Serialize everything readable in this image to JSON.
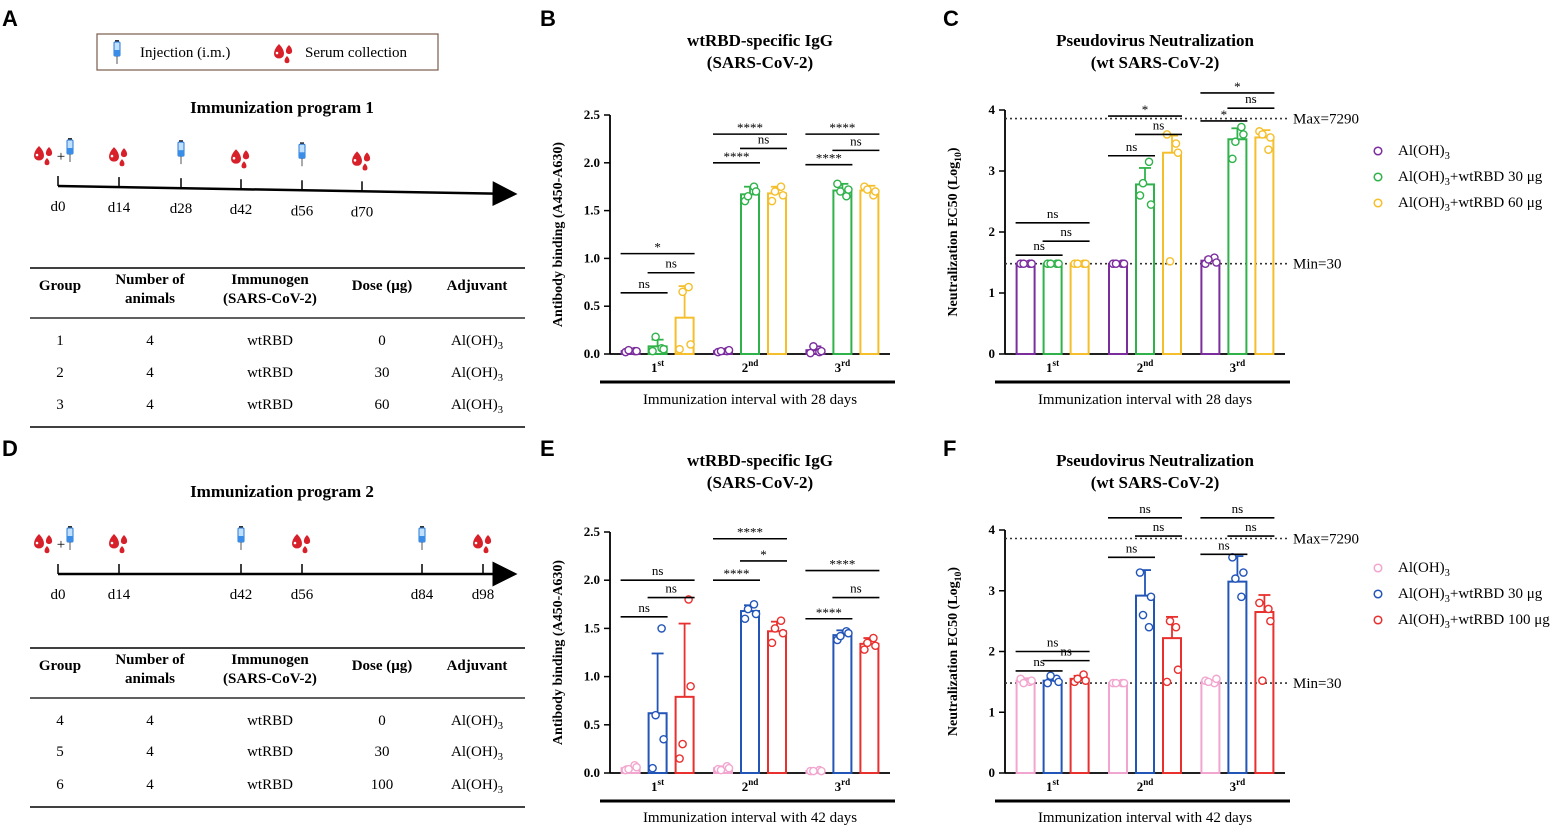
{
  "panel_labels": [
    "A",
    "B",
    "C",
    "D",
    "E",
    "F"
  ],
  "legend_box": {
    "injection": "Injection (i.m.)",
    "serum": "Serum collection"
  },
  "programs": [
    {
      "title": "Immunization program 1",
      "days": [
        "d0",
        "d14",
        "d28",
        "d42",
        "d56",
        "d70"
      ],
      "injection_days": [
        "d0",
        "d28",
        "d56"
      ],
      "serum_days": [
        "d0",
        "d14",
        "d42",
        "d70"
      ]
    },
    {
      "title": "Immunization program 2",
      "days": [
        "d0",
        "d14",
        "d42",
        "d56",
        "d84",
        "d98"
      ],
      "injection_days": [
        "d0",
        "d42",
        "d84"
      ],
      "serum_days": [
        "d0",
        "d14",
        "d56",
        "d98"
      ]
    }
  ],
  "tables": [
    {
      "headers": [
        "Group",
        "Number of|animals",
        "Immunogen|(SARS-CoV-2)",
        "Dose (μg)",
        "Adjuvant"
      ],
      "rows": [
        [
          "1",
          "4",
          "wtRBD",
          "0",
          "Al(OH)₃"
        ],
        [
          "2",
          "4",
          "wtRBD",
          "30",
          "Al(OH)₃"
        ],
        [
          "3",
          "4",
          "wtRBD",
          "60",
          "Al(OH)₃"
        ]
      ]
    },
    {
      "headers": [
        "Group",
        "Number of|animals",
        "Immunogen|(SARS-CoV-2)",
        "Dose (μg)",
        "Adjuvant"
      ],
      "rows": [
        [
          "4",
          "4",
          "wtRBD",
          "0",
          "Al(OH)₃"
        ],
        [
          "5",
          "4",
          "wtRBD",
          "30",
          "Al(OH)₃"
        ],
        [
          "6",
          "4",
          "wtRBD",
          "100",
          "Al(OH)₃"
        ]
      ]
    }
  ],
  "colors": {
    "purple": "#7b2d9e",
    "green": "#2fb24a",
    "yellow": "#f5bf2c",
    "pink": "#f2a6cf",
    "blue": "#2255b8",
    "red": "#e8302e",
    "refline": "#333333",
    "text": "#111111"
  },
  "chart_data": [
    {
      "type": "bar",
      "panel": "B",
      "title": "wtRBD-specific IgG|(SARS-CoV-2)",
      "ylabel": "Antibody binding (A450-A630)",
      "xlabel": "Immunization interval with 28 days",
      "categories": [
        [
          "1",
          "st"
        ],
        [
          "2",
          "nd"
        ],
        [
          "3",
          "rd"
        ]
      ],
      "ylim": [
        0,
        2.5
      ],
      "yticks": [
        "0.0",
        "0.5",
        "1.0",
        "1.5",
        "2.0",
        "2.5"
      ],
      "series": [
        {
          "name": "Al(OH)3",
          "color": "purple",
          "values": [
            0.03,
            0.03,
            0.04
          ],
          "errors": [
            0.01,
            0.01,
            0.04
          ],
          "points": [
            [
              0.02,
              0.03,
              0.04,
              0.03
            ],
            [
              0.02,
              0.03,
              0.03,
              0.04
            ],
            [
              0.01,
              0.02,
              0.08,
              0.03
            ]
          ]
        },
        {
          "name": "Al(OH)3+wtRBD 30 μg",
          "color": "green",
          "values": [
            0.08,
            1.67,
            1.71
          ],
          "errors": [
            0.07,
            0.08,
            0.07
          ],
          "points": [
            [
              0.03,
              0.06,
              0.18,
              0.05
            ],
            [
              1.6,
              1.75,
              1.65,
              1.7
            ],
            [
              1.78,
              1.65,
              1.7,
              1.72
            ]
          ]
        },
        {
          "name": "Al(OH)3+wtRBD 60 μg",
          "color": "yellow",
          "values": [
            0.38,
            1.68,
            1.71
          ],
          "errors": [
            0.33,
            0.07,
            0.05
          ],
          "points": [
            [
              0.05,
              0.7,
              0.65,
              0.1
            ],
            [
              1.6,
              1.75,
              1.7,
              1.66
            ],
            [
              1.75,
              1.66,
              1.72,
              1.7
            ]
          ]
        }
      ],
      "significance": [
        {
          "group": 0,
          "from": 0,
          "to": 2,
          "y": 1.05,
          "label": "*"
        },
        {
          "group": 0,
          "from": 0,
          "to": 1,
          "y": 0.64,
          "label": "ns"
        },
        {
          "group": 0,
          "from": 1,
          "to": 2,
          "y": 0.85,
          "label": "ns"
        },
        {
          "group": 1,
          "from": 0,
          "to": 2,
          "y": 2.3,
          "label": "****"
        },
        {
          "group": 1,
          "from": 0,
          "to": 1,
          "y": 2.0,
          "label": "****"
        },
        {
          "group": 1,
          "from": 1,
          "to": 2,
          "y": 2.15,
          "label": "ns"
        },
        {
          "group": 2,
          "from": 0,
          "to": 2,
          "y": 2.3,
          "label": "****"
        },
        {
          "group": 2,
          "from": 0,
          "to": 1,
          "y": 1.98,
          "label": "****"
        },
        {
          "group": 2,
          "from": 1,
          "to": 2,
          "y": 2.13,
          "label": "ns"
        }
      ],
      "reflines": []
    },
    {
      "type": "bar",
      "panel": "C",
      "title": "Pseudovirus Neutralization|(wt SARS-CoV-2)",
      "ylabel": "Neutralization EC50 (Log",
      "ylabel_sub": "10",
      "xlabel": "Immunization interval with 28 days",
      "categories": [
        [
          "1",
          "st"
        ],
        [
          "2",
          "nd"
        ],
        [
          "3",
          "rd"
        ]
      ],
      "ylim": [
        0,
        4
      ],
      "yticks": [
        "0",
        "1",
        "2",
        "3",
        "4"
      ],
      "series": [
        {
          "name": "Al(OH)3",
          "color": "purple",
          "values": [
            1.48,
            1.48,
            1.53
          ],
          "errors": [
            0.0,
            0.0,
            0.05
          ],
          "points": [
            [
              1.48,
              1.48,
              1.48,
              1.48
            ],
            [
              1.48,
              1.48,
              1.48,
              1.48
            ],
            [
              1.48,
              1.58,
              1.55,
              1.5
            ]
          ]
        },
        {
          "name": "Al(OH)3+wtRBD 30 μg",
          "color": "green",
          "values": [
            1.48,
            2.78,
            3.52
          ],
          "errors": [
            0.0,
            0.27,
            0.18
          ],
          "points": [
            [
              1.48,
              1.48,
              1.48,
              1.48
            ],
            [
              2.6,
              3.15,
              2.8,
              2.45
            ],
            [
              3.2,
              3.72,
              3.48,
              3.6
            ]
          ]
        },
        {
          "name": "Al(OH)3+wtRBD 60 μg",
          "color": "yellow",
          "values": [
            1.48,
            3.3,
            3.55
          ],
          "errors": [
            0.0,
            0.28,
            0.12
          ],
          "points": [
            [
              1.48,
              1.48,
              1.48,
              1.48
            ],
            [
              3.6,
              3.45,
              1.52,
              3.3
            ],
            [
              3.65,
              3.35,
              3.6,
              3.55
            ]
          ]
        }
      ],
      "significance": [
        {
          "group": 0,
          "from": 0,
          "to": 2,
          "y": 2.15,
          "label": "ns"
        },
        {
          "group": 0,
          "from": 0,
          "to": 1,
          "y": 1.62,
          "label": "ns"
        },
        {
          "group": 0,
          "from": 1,
          "to": 2,
          "y": 1.85,
          "label": "ns"
        },
        {
          "group": 1,
          "from": 0,
          "to": 2,
          "y": 3.9,
          "label": "*"
        },
        {
          "group": 1,
          "from": 0,
          "to": 1,
          "y": 3.25,
          "label": "ns"
        },
        {
          "group": 1,
          "from": 1,
          "to": 2,
          "y": 3.6,
          "label": "ns"
        },
        {
          "group": 2,
          "from": 0,
          "to": 2,
          "y": 4.28,
          "label": "*"
        },
        {
          "group": 2,
          "from": 0,
          "to": 1,
          "y": 3.82,
          "label": "*"
        },
        {
          "group": 2,
          "from": 1,
          "to": 2,
          "y": 4.03,
          "label": "ns"
        }
      ],
      "reflines": [
        {
          "value": 3.86,
          "label": "Max=7290"
        },
        {
          "value": 1.48,
          "label": "Min=30"
        }
      ]
    },
    {
      "type": "bar",
      "panel": "E",
      "title": "wtRBD-specific IgG|(SARS-CoV-2)",
      "ylabel": "Antibody binding (A450-A630)",
      "xlabel": "Immunization interval with 42 days",
      "categories": [
        [
          "1",
          "st"
        ],
        [
          "2",
          "nd"
        ],
        [
          "3",
          "rd"
        ]
      ],
      "ylim": [
        0,
        2.5
      ],
      "yticks": [
        "0.0",
        "0.5",
        "1.0",
        "1.5",
        "2.0",
        "2.5"
      ],
      "series": [
        {
          "name": "Al(OH)3",
          "color": "pink",
          "values": [
            0.05,
            0.05,
            0.02
          ],
          "errors": [
            0.02,
            0.02,
            0.01
          ],
          "points": [
            [
              0.03,
              0.08,
              0.04,
              0.06
            ],
            [
              0.04,
              0.07,
              0.03,
              0.05
            ],
            [
              0.02,
              0.03,
              0.02,
              0.02
            ]
          ]
        },
        {
          "name": "Al(OH)3+wtRBD 30 μg",
          "color": "blue",
          "values": [
            0.62,
            1.68,
            1.43
          ],
          "errors": [
            0.62,
            0.06,
            0.05
          ],
          "points": [
            [
              0.05,
              1.5,
              0.6,
              0.35
            ],
            [
              1.6,
              1.75,
              1.7,
              1.65
            ],
            [
              1.38,
              1.47,
              1.42,
              1.45
            ]
          ]
        },
        {
          "name": "Al(OH)3+wtRBD 100 μg",
          "color": "red",
          "values": [
            0.79,
            1.47,
            1.34
          ],
          "errors": [
            0.76,
            0.1,
            0.06
          ],
          "points": [
            [
              0.15,
              1.8,
              0.3,
              0.9
            ],
            [
              1.35,
              1.58,
              1.5,
              1.45
            ],
            [
              1.28,
              1.4,
              1.35,
              1.32
            ]
          ]
        }
      ],
      "significance": [
        {
          "group": 0,
          "from": 0,
          "to": 2,
          "y": 2.0,
          "label": "ns"
        },
        {
          "group": 0,
          "from": 0,
          "to": 1,
          "y": 1.62,
          "label": "ns"
        },
        {
          "group": 0,
          "from": 1,
          "to": 2,
          "y": 1.82,
          "label": "ns"
        },
        {
          "group": 1,
          "from": 0,
          "to": 2,
          "y": 2.43,
          "label": "****"
        },
        {
          "group": 1,
          "from": 0,
          "to": 1,
          "y": 2.0,
          "label": "****"
        },
        {
          "group": 1,
          "from": 1,
          "to": 2,
          "y": 2.2,
          "label": "*"
        },
        {
          "group": 2,
          "from": 0,
          "to": 2,
          "y": 2.1,
          "label": "****"
        },
        {
          "group": 2,
          "from": 0,
          "to": 1,
          "y": 1.6,
          "label": "****"
        },
        {
          "group": 2,
          "from": 1,
          "to": 2,
          "y": 1.82,
          "label": "ns"
        }
      ],
      "reflines": []
    },
    {
      "type": "bar",
      "panel": "F",
      "title": "Pseudovirus Neutralization|(wt SARS-CoV-2)",
      "ylabel": "Neutralization EC50 (Log",
      "ylabel_sub": "10",
      "xlabel": "Immunization interval with 42 days",
      "categories": [
        [
          "1",
          "st"
        ],
        [
          "2",
          "nd"
        ],
        [
          "3",
          "rd"
        ]
      ],
      "ylim": [
        0,
        4
      ],
      "yticks": [
        "0",
        "1",
        "2",
        "3",
        "4"
      ],
      "series": [
        {
          "name": "Al(OH)3",
          "color": "pink",
          "values": [
            1.52,
            1.48,
            1.5
          ],
          "errors": [
            0.04,
            0.0,
            0.03
          ],
          "points": [
            [
              1.55,
              1.5,
              1.48,
              1.52
            ],
            [
              1.48,
              1.48,
              1.48,
              1.48
            ],
            [
              1.52,
              1.48,
              1.5,
              1.55
            ]
          ]
        },
        {
          "name": "Al(OH)3+wtRBD 30 μg",
          "color": "blue",
          "values": [
            1.52,
            2.92,
            3.15
          ],
          "errors": [
            0.04,
            0.42,
            0.42
          ],
          "points": [
            [
              1.48,
              1.55,
              1.6,
              1.5
            ],
            [
              3.3,
              2.4,
              2.6,
              2.9
            ],
            [
              3.55,
              2.9,
              3.2,
              3.3
            ]
          ]
        },
        {
          "name": "Al(OH)3+wtRBD 100 μg",
          "color": "red",
          "values": [
            1.55,
            2.22,
            2.65
          ],
          "errors": [
            0.05,
            0.35,
            0.28
          ],
          "points": [
            [
              1.5,
              1.62,
              1.55,
              1.52
            ],
            [
              1.5,
              2.4,
              2.5,
              1.7
            ],
            [
              2.8,
              2.7,
              1.52,
              2.5
            ]
          ]
        }
      ],
      "significance": [
        {
          "group": 0,
          "from": 0,
          "to": 2,
          "y": 2.0,
          "label": "ns"
        },
        {
          "group": 0,
          "from": 0,
          "to": 1,
          "y": 1.68,
          "label": "ns"
        },
        {
          "group": 0,
          "from": 1,
          "to": 2,
          "y": 1.85,
          "label": "ns"
        },
        {
          "group": 1,
          "from": 0,
          "to": 2,
          "y": 4.2,
          "label": "ns"
        },
        {
          "group": 1,
          "from": 0,
          "to": 1,
          "y": 3.55,
          "label": "ns"
        },
        {
          "group": 1,
          "from": 1,
          "to": 2,
          "y": 3.9,
          "label": "ns"
        },
        {
          "group": 2,
          "from": 0,
          "to": 2,
          "y": 4.2,
          "label": "ns"
        },
        {
          "group": 2,
          "from": 0,
          "to": 1,
          "y": 3.6,
          "label": "ns"
        },
        {
          "group": 2,
          "from": 1,
          "to": 2,
          "y": 3.9,
          "label": "ns"
        }
      ],
      "reflines": [
        {
          "value": 3.86,
          "label": "Max=7290"
        },
        {
          "value": 1.48,
          "label": "Min=30"
        }
      ]
    }
  ],
  "legends": [
    {
      "panel": "C",
      "items": [
        {
          "text": "Al(OH)",
          "sub": "3",
          "rest": "",
          "color": "purple"
        },
        {
          "text": "Al(OH)",
          "sub": "3",
          "rest": "+wtRBD 30 μg",
          "color": "green"
        },
        {
          "text": "Al(OH)",
          "sub": "3",
          "rest": "+wtRBD 60 μg",
          "color": "yellow"
        }
      ]
    },
    {
      "panel": "F",
      "items": [
        {
          "text": "Al(OH)",
          "sub": "3",
          "rest": "",
          "color": "pink"
        },
        {
          "text": "Al(OH)",
          "sub": "3",
          "rest": "+wtRBD 30 μg",
          "color": "blue"
        },
        {
          "text": "Al(OH)",
          "sub": "3",
          "rest": "+wtRBD 100 μg",
          "color": "red"
        }
      ]
    }
  ]
}
